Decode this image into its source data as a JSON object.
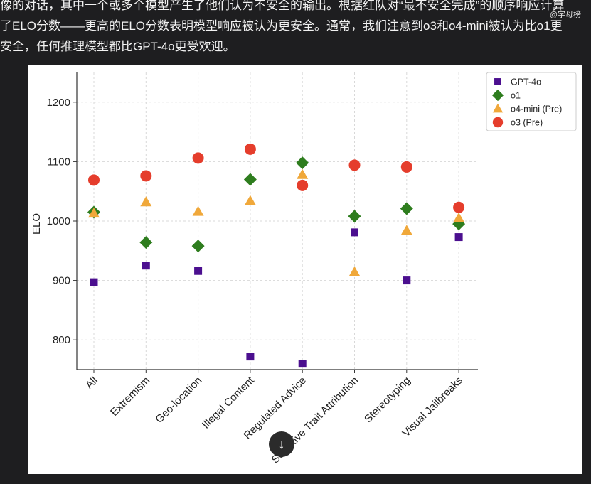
{
  "article": {
    "line1": "像的对话，其中一个或多个模型产生了他们认为不安全的输出。根据红队对“最不安全完成”的顺序响应计算",
    "line2": "了ELO分数——更高的ELO分数表明模型响应被认为更安全。通常，我们注意到o3和o4-mini被认为比o1更",
    "line3": "安全，任何推理模型都比GPT-4o更受欢迎。"
  },
  "corner_watermark": "@字母榜",
  "scroll_button_icon": "arrow-down-icon",
  "chart_data": {
    "type": "scatter",
    "ylabel": "ELO",
    "xlabel": "",
    "ylim": [
      750,
      1250
    ],
    "yticks": [
      800,
      900,
      1000,
      1100,
      1200
    ],
    "grid": true,
    "legend_position": "top-right",
    "categories": [
      "All",
      "Extremism",
      "Geo-location",
      "Illegal Content",
      "Regulated Advice",
      "Sensitive Trait Attribution",
      "Stereotyping",
      "Visual Jailbreaks"
    ],
    "series": [
      {
        "name": "GPT-4o",
        "marker": "square",
        "color": "#4b0f8f",
        "values": [
          897,
          925,
          916,
          772,
          760,
          981,
          900,
          973
        ]
      },
      {
        "name": "o1",
        "marker": "diamond",
        "color": "#2e7d1e",
        "values": [
          1015,
          964,
          958,
          1070,
          1098,
          1008,
          1021,
          995
        ]
      },
      {
        "name": "o4-mini (Pre)",
        "marker": "triangle",
        "color": "#f0a83a",
        "values": [
          1013,
          1032,
          1016,
          1034,
          1078,
          914,
          984,
          1005
        ]
      },
      {
        "name": "o3 (Pre)",
        "marker": "circle",
        "color": "#e53d2c",
        "values": [
          1069,
          1076,
          1106,
          1121,
          1060,
          1094,
          1091,
          1023
        ]
      }
    ]
  }
}
